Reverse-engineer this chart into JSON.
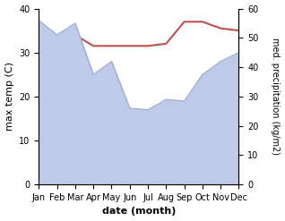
{
  "months": [
    "Jan",
    "Feb",
    "Mar",
    "Apr",
    "May",
    "Jun",
    "Jul",
    "Aug",
    "Sep",
    "Oct",
    "Nov",
    "Dec"
  ],
  "month_x": [
    1,
    2,
    3,
    4,
    5,
    6,
    7,
    8,
    9,
    10,
    11,
    12
  ],
  "temp_max": [
    32.5,
    32.0,
    34.0,
    31.5,
    31.5,
    31.5,
    31.5,
    32.0,
    37.0,
    37.0,
    35.5,
    35.0
  ],
  "precip": [
    56.0,
    51.0,
    55.0,
    37.5,
    42.0,
    26.0,
    25.5,
    29.0,
    28.5,
    37.5,
    42.0,
    45.0
  ],
  "temp_color": "#c0504d",
  "precip_fill_color": "#bfc9e8",
  "precip_line_color": "#9badd4",
  "ylabel_left": "max temp (C)",
  "ylabel_right": "med. precipitation (kg/m2)",
  "xlabel": "date (month)",
  "ylim_left": [
    0,
    40
  ],
  "ylim_right": [
    0,
    60
  ],
  "yticks_left": [
    0,
    10,
    20,
    30,
    40
  ],
  "yticks_right": [
    0,
    10,
    20,
    30,
    40,
    50,
    60
  ],
  "bg_color": "#ffffff"
}
